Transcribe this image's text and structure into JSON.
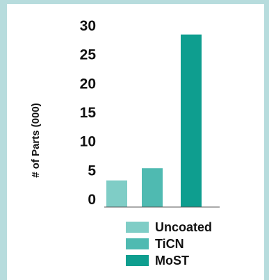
{
  "chart_data": {
    "type": "bar",
    "categories": [
      "Uncoated",
      "TiCN",
      "MoST"
    ],
    "values": [
      4.6,
      6.7,
      29.8
    ],
    "ylabel": "# of Parts (000)",
    "xlabel": "",
    "ylim": [
      0,
      30
    ],
    "yticks": [
      "0",
      "5",
      "10",
      "15",
      "20",
      "25",
      "30"
    ],
    "colors": [
      "#7fcdc6",
      "#4fbab1",
      "#0e9e8f"
    ],
    "grid": false,
    "legend": {
      "placement": "bottom",
      "entries": [
        "Uncoated",
        "TiCN",
        "MoST"
      ]
    }
  }
}
